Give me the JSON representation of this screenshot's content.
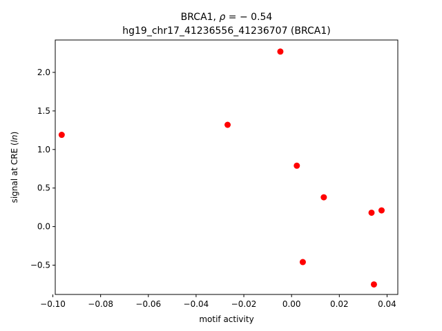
{
  "chart_data": {
    "type": "scatter",
    "title_line1_prefix": "BRCA1, ",
    "title_line1_rho": "ρ",
    "title_line1_suffix": " = − 0.54",
    "title_line2": "hg19_chr17_41236556_41236707 (BRCA1)",
    "xlabel": "motif activity",
    "ylabel_prefix": "signal at CRE (",
    "ylabel_italic": "ln",
    "ylabel_suffix": ")",
    "xlim": [
      -0.099,
      0.0445
    ],
    "ylim": [
      -0.88,
      2.42
    ],
    "xticks": [
      -0.1,
      -0.08,
      -0.06,
      -0.04,
      -0.02,
      0.0,
      0.02,
      0.04
    ],
    "xtick_labels": [
      "−0.10",
      "−0.08",
      "−0.06",
      "−0.04",
      "−0.02",
      "0.00",
      "0.02",
      "0.04"
    ],
    "yticks": [
      -0.5,
      0.0,
      0.5,
      1.0,
      1.5,
      2.0
    ],
    "ytick_labels": [
      "−0.5",
      "0.0",
      "0.5",
      "1.0",
      "1.5",
      "2.0"
    ],
    "points": [
      {
        "x": -0.0963,
        "y": 1.19
      },
      {
        "x": -0.0268,
        "y": 1.32
      },
      {
        "x": -0.0047,
        "y": 2.27
      },
      {
        "x": 0.0022,
        "y": 0.79
      },
      {
        "x": 0.0047,
        "y": -0.46
      },
      {
        "x": 0.0135,
        "y": 0.38
      },
      {
        "x": 0.0335,
        "y": 0.18
      },
      {
        "x": 0.0345,
        "y": -0.75
      },
      {
        "x": 0.0377,
        "y": 0.21
      }
    ],
    "marker_color": "#ff0000",
    "grid": false,
    "legend": "none"
  }
}
